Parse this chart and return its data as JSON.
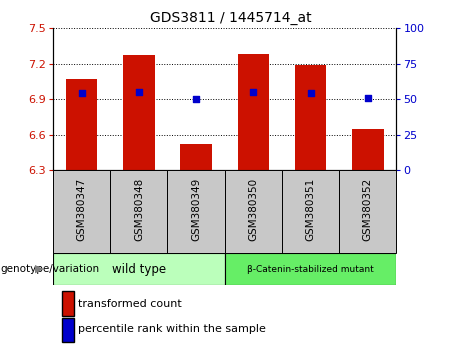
{
  "title": "GDS3811 / 1445714_at",
  "categories": [
    "GSM380347",
    "GSM380348",
    "GSM380349",
    "GSM380350",
    "GSM380351",
    "GSM380352"
  ],
  "bar_values": [
    7.07,
    7.27,
    6.52,
    7.28,
    7.19,
    6.65
  ],
  "bar_bottom": 6.3,
  "percentile_values": [
    6.95,
    6.96,
    6.9,
    6.96,
    6.95,
    6.91
  ],
  "ylim_left": [
    6.3,
    7.5
  ],
  "ylim_right": [
    0,
    100
  ],
  "yticks_left": [
    6.3,
    6.6,
    6.9,
    7.2,
    7.5
  ],
  "yticks_right": [
    0,
    25,
    50,
    75,
    100
  ],
  "bar_color": "#cc1100",
  "dot_color": "#0000cc",
  "grid_color": "#000000",
  "bg_plot": "#ffffff",
  "sample_box_color": "#c8c8c8",
  "group1_label": "wild type",
  "group2_label": "β-Catenin-stabilized mutant",
  "group1_indices": [
    0,
    1,
    2
  ],
  "group2_indices": [
    3,
    4,
    5
  ],
  "group1_color": "#bbffbb",
  "group2_color": "#66ee66",
  "genotype_label": "genotype/variation",
  "legend_items": [
    "transformed count",
    "percentile rank within the sample"
  ],
  "legend_colors": [
    "#cc1100",
    "#0000cc"
  ],
  "title_fontsize": 10,
  "axis_fontsize": 8,
  "label_fontsize": 7.5,
  "legend_fontsize": 8
}
